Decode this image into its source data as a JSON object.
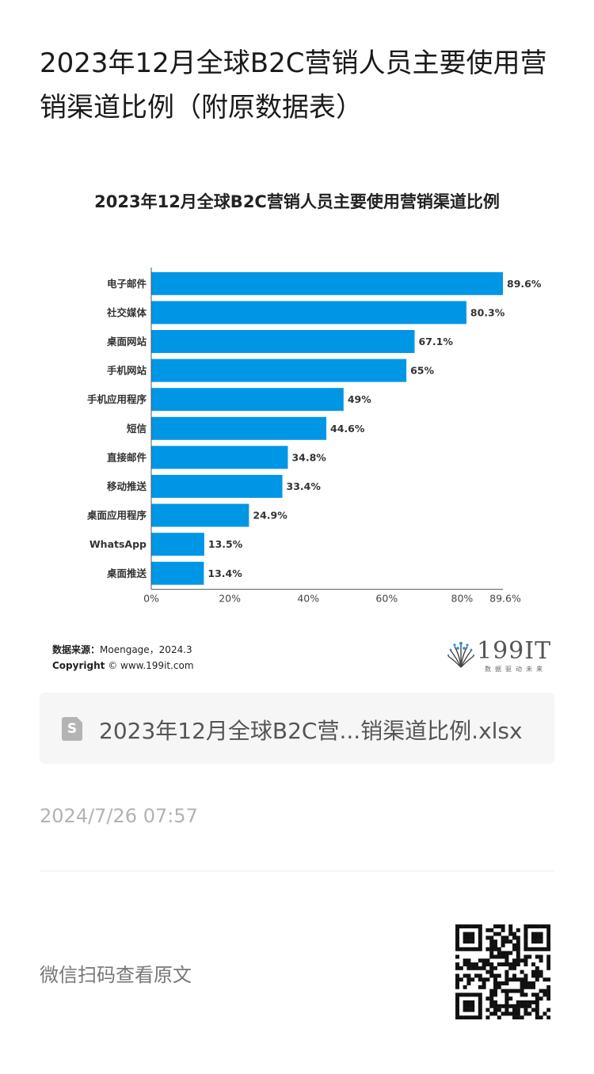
{
  "article": {
    "title": "2023年12月全球B2C营销人员主要使用营销渠道比例（附原数据表）"
  },
  "chart_data": {
    "type": "bar",
    "orientation": "horizontal",
    "title": "2023年12月全球B2C营销人员主要使用营销渠道比例",
    "categories": [
      "电子邮件",
      "社交媒体",
      "桌面网站",
      "手机网站",
      "手机应用程序",
      "短信",
      "直接邮件",
      "移动推送",
      "桌面应用程序",
      "WhatsApp",
      "桌面推送"
    ],
    "values": [
      89.6,
      80.3,
      67.1,
      65,
      49,
      44.6,
      34.8,
      33.4,
      24.9,
      13.5,
      13.4
    ],
    "value_labels": [
      "89.6%",
      "80.3%",
      "67.1%",
      "65%",
      "49%",
      "44.6%",
      "34.8%",
      "33.4%",
      "24.9%",
      "13.5%",
      "13.4%"
    ],
    "xlim": [
      0,
      89.6
    ],
    "x_ticks": [
      0,
      20,
      40,
      60,
      80,
      89.6
    ],
    "x_tick_labels": [
      "0%",
      "20%",
      "40%",
      "60%",
      "80%",
      "89.6%"
    ],
    "grid": false,
    "bar_color": "#0096e6"
  },
  "source": {
    "label": "数据来源：",
    "value": "Moengage，2024.3",
    "copyright_label": "Copyright",
    "copyright_value": "© www.199it.com"
  },
  "logo": {
    "text": "199IT",
    "tagline": "数据驱动未来"
  },
  "file": {
    "icon": "spreadsheet-file-icon",
    "glyph": "S",
    "name": "2023年12月全球B2C营...销渠道比例.xlsx"
  },
  "meta": {
    "timestamp": "2024/7/26 07:57"
  },
  "footer": {
    "scan_text": "微信扫码查看原文",
    "qr_icon": "qr-code-icon"
  }
}
